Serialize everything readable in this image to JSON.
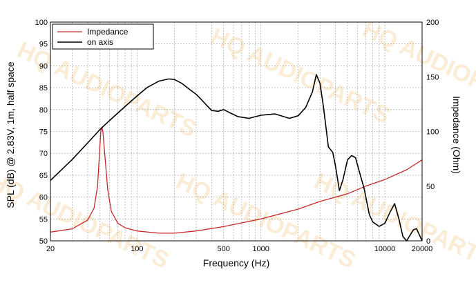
{
  "chart_data": {
    "type": "line",
    "x_scale": "log",
    "xlabel": "Frequency (Hz)",
    "ylabel_left": "SPL (dB) @ 2.83V, 1m, half space",
    "ylabel_right": "Impedance (Ohm)",
    "xlim": [
      20,
      20000
    ],
    "ylim_left": [
      50,
      100
    ],
    "ylim_right": [
      0,
      200
    ],
    "x_ticks": [
      20,
      100,
      500,
      1000,
      10000,
      20000
    ],
    "x_tick_labels": [
      "20",
      "100",
      "500",
      "1000",
      "10000",
      "20000"
    ],
    "y_ticks_left": [
      50,
      55,
      60,
      65,
      70,
      75,
      80,
      85,
      90,
      95,
      100
    ],
    "y_tick_labels_left": [
      "50",
      "55",
      "60",
      "65",
      "70",
      "75",
      "80",
      "85",
      "90",
      "95",
      "100"
    ],
    "y_ticks_right": [
      0,
      50,
      100,
      150,
      200
    ],
    "y_tick_labels_right": [
      "0",
      "50",
      "100",
      "150",
      "200"
    ],
    "grid": true,
    "legend_position": "top-left",
    "watermark": "HQ AUDIOPARTS",
    "series": [
      {
        "name": "Impedance",
        "axis": "right",
        "color": "#c62828",
        "points": [
          [
            20,
            8
          ],
          [
            30,
            11
          ],
          [
            40,
            19
          ],
          [
            45,
            30
          ],
          [
            48,
            50
          ],
          [
            50,
            84
          ],
          [
            51,
            100
          ],
          [
            52,
            104
          ],
          [
            53,
            100
          ],
          [
            55,
            78
          ],
          [
            58,
            47
          ],
          [
            62,
            27
          ],
          [
            70,
            16
          ],
          [
            80,
            12
          ],
          [
            100,
            9
          ],
          [
            150,
            7
          ],
          [
            200,
            7
          ],
          [
            300,
            9
          ],
          [
            500,
            13
          ],
          [
            1000,
            20
          ],
          [
            2000,
            29
          ],
          [
            3000,
            36
          ],
          [
            5000,
            43
          ],
          [
            7000,
            50
          ],
          [
            10000,
            56
          ],
          [
            15000,
            65
          ],
          [
            20000,
            74
          ]
        ]
      },
      {
        "name": "on axis",
        "axis": "left",
        "color": "#000000",
        "points": [
          [
            20,
            63.8
          ],
          [
            30,
            68.6
          ],
          [
            40,
            72.4
          ],
          [
            50,
            75.4
          ],
          [
            60,
            77.5
          ],
          [
            80,
            80.7
          ],
          [
            100,
            83.1
          ],
          [
            120,
            85.0
          ],
          [
            150,
            86.5
          ],
          [
            180,
            87.0
          ],
          [
            200,
            86.9
          ],
          [
            230,
            86.0
          ],
          [
            260,
            84.8
          ],
          [
            300,
            83.5
          ],
          [
            330,
            82.3
          ],
          [
            370,
            80.8
          ],
          [
            400,
            79.8
          ],
          [
            450,
            79.6
          ],
          [
            500,
            80.0
          ],
          [
            550,
            79.4
          ],
          [
            650,
            78.4
          ],
          [
            800,
            78.0
          ],
          [
            1000,
            78.7
          ],
          [
            1300,
            79.0
          ],
          [
            1700,
            78.0
          ],
          [
            2000,
            78.6
          ],
          [
            2300,
            80.5
          ],
          [
            2600,
            84.0
          ],
          [
            2800,
            88.0
          ],
          [
            3000,
            86.0
          ],
          [
            3200,
            80.5
          ],
          [
            3500,
            71.5
          ],
          [
            3800,
            70.2
          ],
          [
            4000,
            67.0
          ],
          [
            4300,
            61.5
          ],
          [
            4600,
            64.0
          ],
          [
            5000,
            68.5
          ],
          [
            5400,
            69.5
          ],
          [
            5800,
            69.0
          ],
          [
            6200,
            66.0
          ],
          [
            6800,
            62.0
          ],
          [
            7500,
            56.0
          ],
          [
            8000,
            54.3
          ],
          [
            9000,
            53.3
          ],
          [
            10000,
            54.0
          ],
          [
            11000,
            56.5
          ],
          [
            12000,
            58.5
          ],
          [
            13000,
            55.0
          ],
          [
            14000,
            51.0
          ],
          [
            15000,
            50.0
          ],
          [
            17000,
            52.5
          ],
          [
            18000,
            52.8
          ],
          [
            20000,
            50.0
          ]
        ]
      }
    ]
  }
}
